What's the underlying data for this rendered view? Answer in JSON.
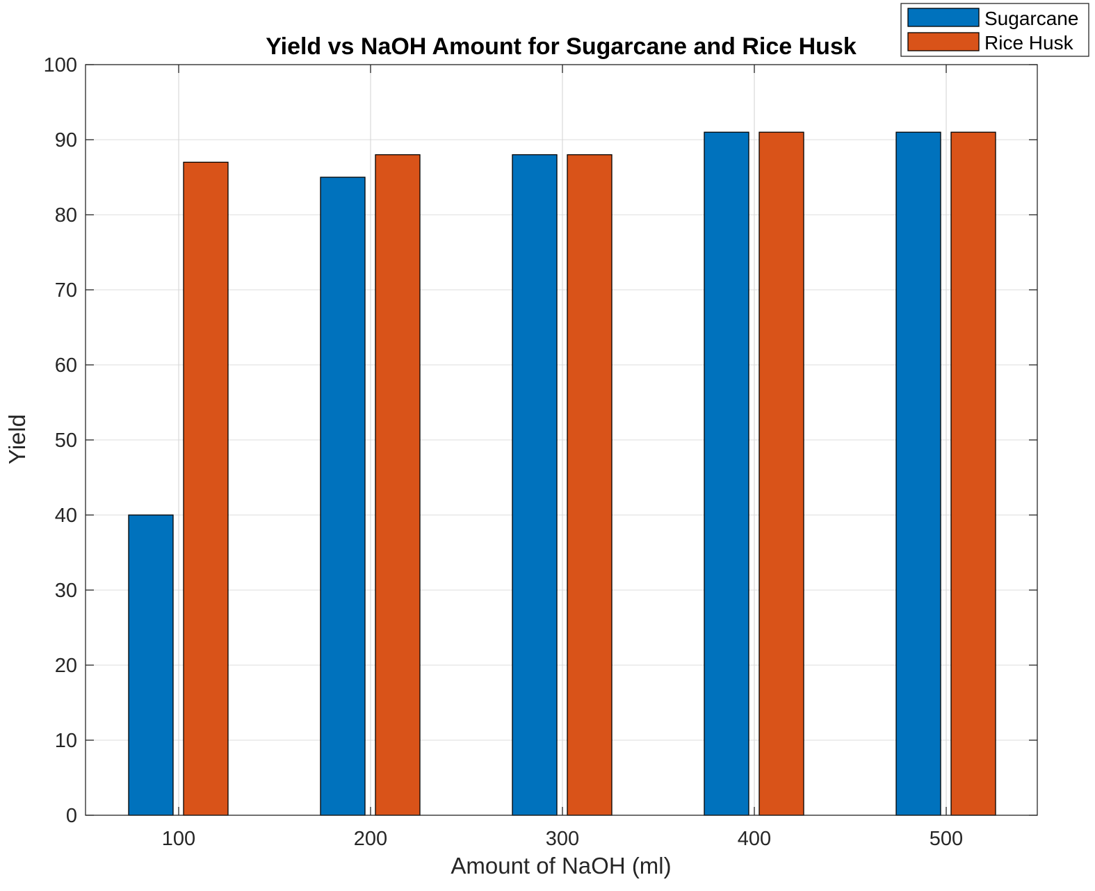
{
  "chart_data": {
    "type": "bar",
    "title": "Yield vs NaOH Amount for Sugarcane and Rice Husk",
    "xlabel": "Amount of NaOH (ml)",
    "ylabel": "Yield",
    "categories": [
      "100",
      "200",
      "300",
      "400",
      "500"
    ],
    "series": [
      {
        "name": "Sugarcane",
        "color": "#0072BD",
        "values": [
          40,
          85,
          88,
          91,
          91
        ]
      },
      {
        "name": "Rice Husk",
        "color": "#D95319",
        "values": [
          87,
          88,
          88,
          91,
          91
        ]
      }
    ],
    "ylim": [
      0,
      100
    ],
    "yticks": [
      "0",
      "10",
      "20",
      "30",
      "40",
      "50",
      "60",
      "70",
      "80",
      "90",
      "100"
    ],
    "grid": true,
    "legend_position": "top-right"
  }
}
